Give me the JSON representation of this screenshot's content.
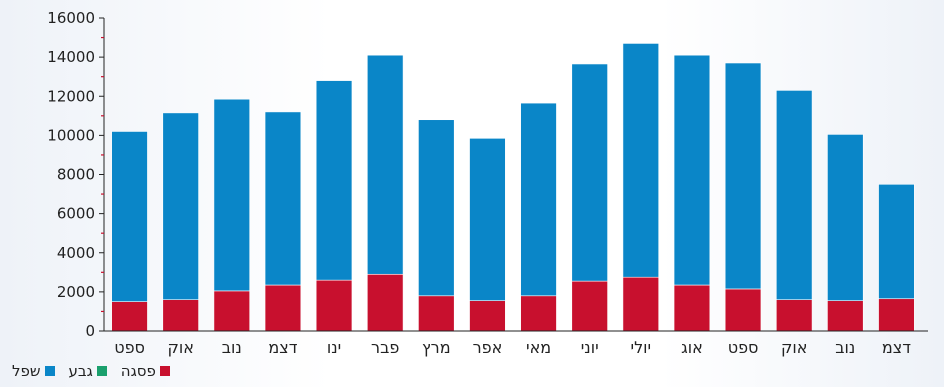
{
  "chart_data": {
    "type": "bar",
    "stacked": true,
    "title": "",
    "xlabel": "",
    "ylabel": "",
    "ylim": [
      0,
      16000
    ],
    "yticks": [
      0,
      2000,
      4000,
      6000,
      8000,
      10000,
      12000,
      14000,
      16000
    ],
    "grid": false,
    "legend_position": "bottom-left",
    "categories": [
      "ספט",
      "אוק",
      "נוב",
      "דצמ",
      "ינו",
      "פבר",
      "מרץ",
      "אפר",
      "מאי",
      "יוני",
      "יולי",
      "אוג",
      "ספט",
      "אוק",
      "נוב",
      "דצמ"
    ],
    "series": [
      {
        "name": "פסגה",
        "color": "#c8102e",
        "values": [
          1500,
          1600,
          2050,
          2350,
          2600,
          2900,
          1800,
          1550,
          1800,
          2550,
          2750,
          2350,
          2150,
          1600,
          1550,
          1650
        ]
      },
      {
        "name": "גבע",
        "color": "#1aa06d",
        "values": [
          0,
          0,
          0,
          0,
          0,
          0,
          0,
          0,
          0,
          0,
          0,
          0,
          0,
          0,
          0,
          0
        ]
      },
      {
        "name": "שפל",
        "color": "#0a86c8",
        "values": [
          8700,
          9550,
          9800,
          8850,
          10200,
          11200,
          9000,
          8300,
          9850,
          11100,
          11950,
          11750,
          11550,
          10700,
          8500,
          5850
        ]
      }
    ]
  },
  "legend": [
    {
      "label": "שפל",
      "color": "#0a86c8"
    },
    {
      "label": "גבע",
      "color": "#1aa06d"
    },
    {
      "label": "פסגה",
      "color": "#c8102e"
    }
  ]
}
